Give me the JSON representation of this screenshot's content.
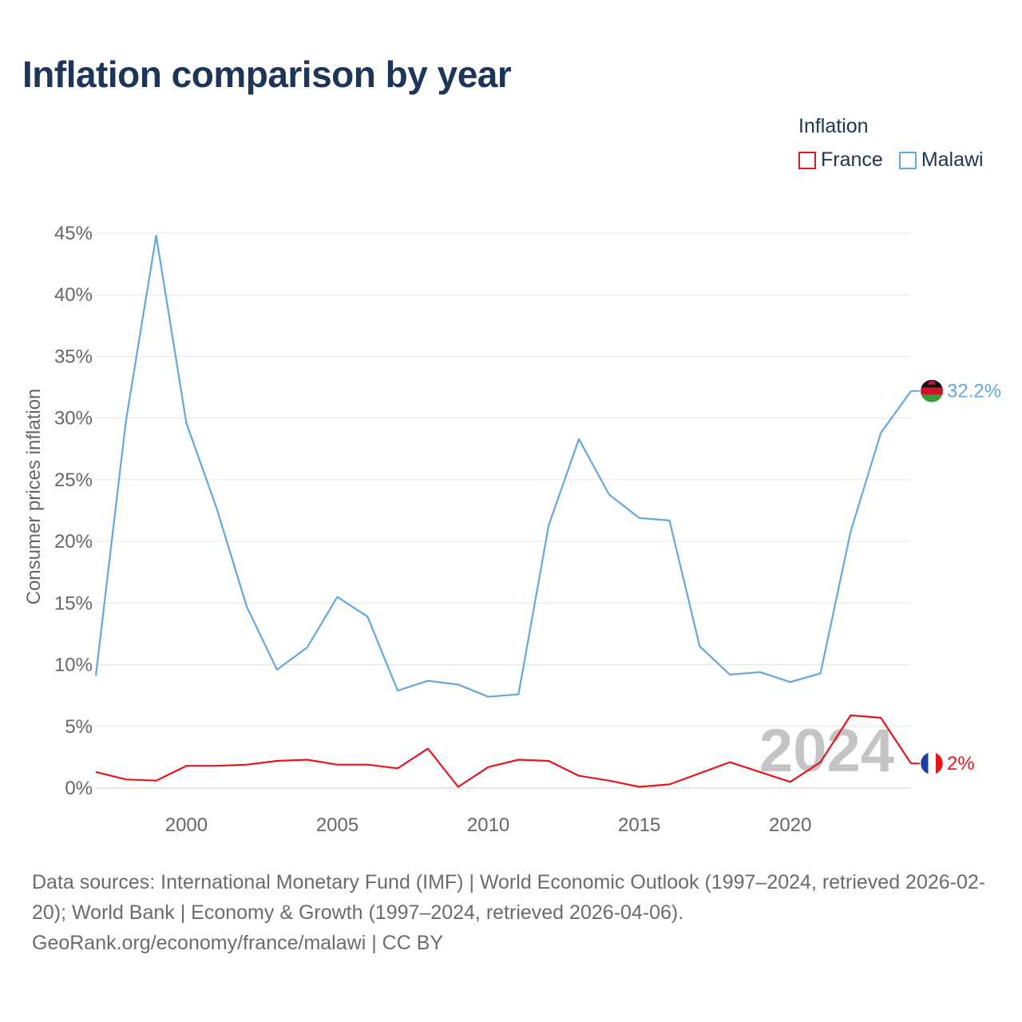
{
  "title": "Inflation comparison by year",
  "legend": {
    "title": "Inflation",
    "items": [
      {
        "name": "France",
        "color": "#e8141c"
      },
      {
        "name": "Malawi",
        "color": "#62a7e2"
      }
    ]
  },
  "chart_data": {
    "type": "line",
    "title": "Inflation comparison by year",
    "xlabel": "",
    "ylabel": "Consumer prices inflation",
    "x": [
      1997,
      1998,
      1999,
      2000,
      2001,
      2002,
      2003,
      2004,
      2005,
      2006,
      2007,
      2008,
      2009,
      2010,
      2011,
      2012,
      2013,
      2014,
      2015,
      2016,
      2017,
      2018,
      2019,
      2020,
      2021,
      2022,
      2023,
      2024
    ],
    "xlim": [
      1997,
      2024
    ],
    "ylim": [
      0,
      45
    ],
    "y_ticks": [
      0,
      5,
      10,
      15,
      20,
      25,
      30,
      35,
      40,
      45
    ],
    "y_tick_labels": [
      "0%",
      "5%",
      "10%",
      "15%",
      "20%",
      "25%",
      "30%",
      "35%",
      "40%",
      "45%"
    ],
    "x_ticks": [
      2000,
      2005,
      2010,
      2015,
      2020
    ],
    "x_tick_labels": [
      "2000",
      "2005",
      "2010",
      "2015",
      "2020"
    ],
    "grid": true,
    "legend_position": "top-right",
    "watermark_year": "2024",
    "series": [
      {
        "name": "Malawi",
        "color": "#62a7e2",
        "end_label": "32.2%",
        "values": [
          9.1,
          29.8,
          44.8,
          29.6,
          22.7,
          14.7,
          9.6,
          11.4,
          15.5,
          13.9,
          7.9,
          8.7,
          8.4,
          7.4,
          7.6,
          21.3,
          28.3,
          23.8,
          21.9,
          21.7,
          11.5,
          9.2,
          9.4,
          8.6,
          9.3,
          20.8,
          28.8,
          32.2
        ]
      },
      {
        "name": "France",
        "color": "#e8141c",
        "end_label": "2%",
        "values": [
          1.3,
          0.7,
          0.6,
          1.8,
          1.8,
          1.9,
          2.2,
          2.3,
          1.9,
          1.9,
          1.6,
          3.2,
          0.1,
          1.7,
          2.3,
          2.2,
          1.0,
          0.6,
          0.1,
          0.3,
          1.2,
          2.1,
          1.3,
          0.5,
          2.1,
          5.9,
          5.7,
          2.0
        ]
      }
    ]
  },
  "footer": {
    "sources": "Data sources: International Monetary Fund (IMF) | World Economic Outlook (1997–2024, retrieved 2026-02-20); World Bank | Economy & Growth (1997–2024, retrieved 2026-04-06).",
    "credit": "GeoRank.org/economy/france/malawi | CC BY"
  }
}
